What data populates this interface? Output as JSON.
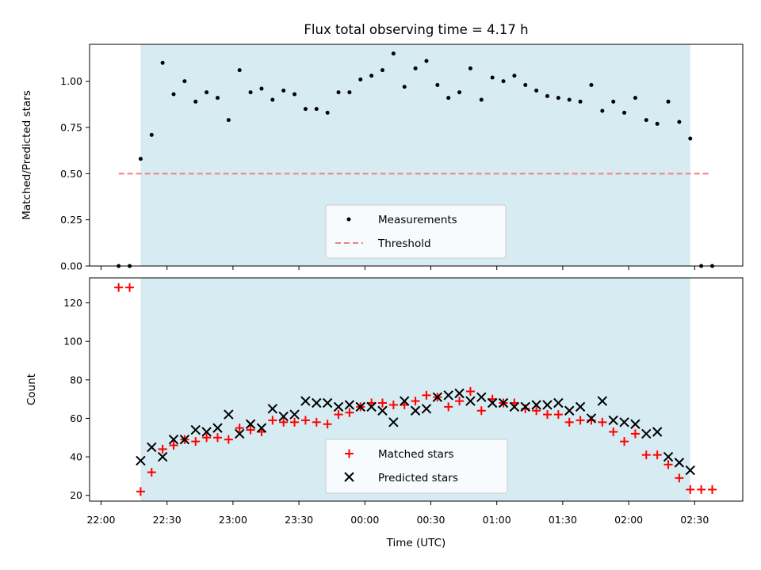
{
  "chart_data": {
    "title": "Flux total observing time = 4.17 h",
    "x_ticks": [
      "22:00",
      "22:30",
      "23:00",
      "23:30",
      "00:00",
      "00:30",
      "01:00",
      "01:30",
      "02:00",
      "02:30"
    ],
    "xlabel": "Time (UTC)",
    "observing_window": {
      "start": "22:18",
      "end": "02:28"
    },
    "panels": [
      {
        "type": "scatter",
        "ylabel": "Matched/Predicted stars",
        "ylim": [
          0,
          1.2
        ],
        "y_ticks": [
          "0.00",
          "0.25",
          "0.50",
          "0.75",
          "1.00"
        ],
        "threshold": {
          "label": "Threshold",
          "value": 0.5,
          "x_start": "22:08",
          "x_end": "02:37",
          "color": "#f08080"
        },
        "series": [
          {
            "name": "Measurements",
            "marker": "dot",
            "color": "#000000",
            "points": [
              [
                "22:08",
                0.0
              ],
              [
                "22:13",
                0.0
              ],
              [
                "22:18",
                0.58
              ],
              [
                "22:23",
                0.71
              ],
              [
                "22:28",
                1.1
              ],
              [
                "22:33",
                0.93
              ],
              [
                "22:38",
                1.0
              ],
              [
                "22:43",
                0.89
              ],
              [
                "22:48",
                0.94
              ],
              [
                "22:53",
                0.91
              ],
              [
                "22:58",
                0.79
              ],
              [
                "23:03",
                1.06
              ],
              [
                "23:08",
                0.94
              ],
              [
                "23:13",
                0.96
              ],
              [
                "23:18",
                0.9
              ],
              [
                "23:23",
                0.95
              ],
              [
                "23:28",
                0.93
              ],
              [
                "23:33",
                0.85
              ],
              [
                "23:38",
                0.85
              ],
              [
                "23:43",
                0.83
              ],
              [
                "23:48",
                0.94
              ],
              [
                "23:53",
                0.94
              ],
              [
                "23:58",
                1.01
              ],
              [
                "00:03",
                1.03
              ],
              [
                "00:08",
                1.06
              ],
              [
                "00:13",
                1.15
              ],
              [
                "00:18",
                0.97
              ],
              [
                "00:23",
                1.07
              ],
              [
                "00:28",
                1.11
              ],
              [
                "00:33",
                0.98
              ],
              [
                "00:38",
                0.91
              ],
              [
                "00:43",
                0.94
              ],
              [
                "00:48",
                1.07
              ],
              [
                "00:53",
                0.9
              ],
              [
                "00:58",
                1.02
              ],
              [
                "01:03",
                1.0
              ],
              [
                "01:08",
                1.03
              ],
              [
                "01:13",
                0.98
              ],
              [
                "01:18",
                0.95
              ],
              [
                "01:23",
                0.92
              ],
              [
                "01:28",
                0.91
              ],
              [
                "01:33",
                0.9
              ],
              [
                "01:38",
                0.89
              ],
              [
                "01:43",
                0.98
              ],
              [
                "01:48",
                0.84
              ],
              [
                "01:53",
                0.89
              ],
              [
                "01:58",
                0.83
              ],
              [
                "02:03",
                0.91
              ],
              [
                "02:08",
                0.79
              ],
              [
                "02:13",
                0.77
              ],
              [
                "02:18",
                0.89
              ],
              [
                "02:23",
                0.78
              ],
              [
                "02:28",
                0.69
              ],
              [
                "02:33",
                0.0
              ],
              [
                "02:38",
                0.0
              ]
            ]
          }
        ],
        "legend": {
          "position": "lower-center",
          "entries": [
            "Measurements",
            "Threshold"
          ]
        }
      },
      {
        "type": "scatter",
        "ylabel": "Count",
        "ylim": [
          17,
          133
        ],
        "y_ticks": [
          "20",
          "40",
          "60",
          "80",
          "100",
          "120"
        ],
        "series": [
          {
            "name": "Matched stars",
            "marker": "plus",
            "color": "#ff0000",
            "points": [
              [
                "22:08",
                128
              ],
              [
                "22:13",
                128
              ],
              [
                "22:18",
                22
              ],
              [
                "22:23",
                32
              ],
              [
                "22:28",
                44
              ],
              [
                "22:33",
                46
              ],
              [
                "22:38",
                49
              ],
              [
                "22:43",
                48
              ],
              [
                "22:48",
                50
              ],
              [
                "22:53",
                50
              ],
              [
                "22:58",
                49
              ],
              [
                "23:03",
                55
              ],
              [
                "23:08",
                54
              ],
              [
                "23:13",
                53
              ],
              [
                "23:18",
                59
              ],
              [
                "23:23",
                58
              ],
              [
                "23:28",
                58
              ],
              [
                "23:33",
                59
              ],
              [
                "23:38",
                58
              ],
              [
                "23:43",
                57
              ],
              [
                "23:48",
                62
              ],
              [
                "23:53",
                63
              ],
              [
                "23:58",
                66
              ],
              [
                "00:03",
                68
              ],
              [
                "00:08",
                68
              ],
              [
                "00:13",
                67
              ],
              [
                "00:18",
                67
              ],
              [
                "00:23",
                69
              ],
              [
                "00:28",
                72
              ],
              [
                "00:33",
                71
              ],
              [
                "00:38",
                66
              ],
              [
                "00:43",
                69
              ],
              [
                "00:48",
                74
              ],
              [
                "00:53",
                64
              ],
              [
                "00:58",
                70
              ],
              [
                "01:03",
                68
              ],
              [
                "01:08",
                68
              ],
              [
                "01:13",
                65
              ],
              [
                "01:18",
                64
              ],
              [
                "01:23",
                62
              ],
              [
                "01:28",
                62
              ],
              [
                "01:33",
                58
              ],
              [
                "01:38",
                59
              ],
              [
                "01:43",
                59
              ],
              [
                "01:48",
                58
              ],
              [
                "01:53",
                53
              ],
              [
                "01:58",
                48
              ],
              [
                "02:03",
                52
              ],
              [
                "02:08",
                41
              ],
              [
                "02:13",
                41
              ],
              [
                "02:18",
                36
              ],
              [
                "02:23",
                29
              ],
              [
                "02:28",
                23
              ],
              [
                "02:33",
                23
              ],
              [
                "02:38",
                23
              ]
            ]
          },
          {
            "name": "Predicted stars",
            "marker": "x",
            "color": "#000000",
            "points": [
              [
                "22:18",
                38
              ],
              [
                "22:23",
                45
              ],
              [
                "22:28",
                40
              ],
              [
                "22:33",
                49
              ],
              [
                "22:38",
                49
              ],
              [
                "22:43",
                54
              ],
              [
                "22:48",
                53
              ],
              [
                "22:53",
                55
              ],
              [
                "22:58",
                62
              ],
              [
                "23:03",
                52
              ],
              [
                "23:08",
                57
              ],
              [
                "23:13",
                55
              ],
              [
                "23:18",
                65
              ],
              [
                "23:23",
                61
              ],
              [
                "23:28",
                62
              ],
              [
                "23:33",
                69
              ],
              [
                "23:38",
                68
              ],
              [
                "23:43",
                68
              ],
              [
                "23:48",
                66
              ],
              [
                "23:53",
                67
              ],
              [
                "23:58",
                66
              ],
              [
                "00:03",
                66
              ],
              [
                "00:08",
                64
              ],
              [
                "00:13",
                58
              ],
              [
                "00:18",
                69
              ],
              [
                "00:23",
                64
              ],
              [
                "00:28",
                65
              ],
              [
                "00:33",
                71
              ],
              [
                "00:38",
                72
              ],
              [
                "00:43",
                73
              ],
              [
                "00:48",
                69
              ],
              [
                "00:53",
                71
              ],
              [
                "00:58",
                68
              ],
              [
                "01:03",
                68
              ],
              [
                "01:08",
                66
              ],
              [
                "01:13",
                66
              ],
              [
                "01:18",
                67
              ],
              [
                "01:23",
                67
              ],
              [
                "01:28",
                68
              ],
              [
                "01:33",
                64
              ],
              [
                "01:38",
                66
              ],
              [
                "01:43",
                60
              ],
              [
                "01:48",
                69
              ],
              [
                "01:53",
                59
              ],
              [
                "01:58",
                58
              ],
              [
                "02:03",
                57
              ],
              [
                "02:08",
                52
              ],
              [
                "02:13",
                53
              ],
              [
                "02:18",
                40
              ],
              [
                "02:23",
                37
              ],
              [
                "02:28",
                33
              ]
            ]
          }
        ],
        "legend": {
          "position": "lower-center",
          "entries": [
            "Matched stars",
            "Predicted stars"
          ]
        }
      }
    ]
  }
}
